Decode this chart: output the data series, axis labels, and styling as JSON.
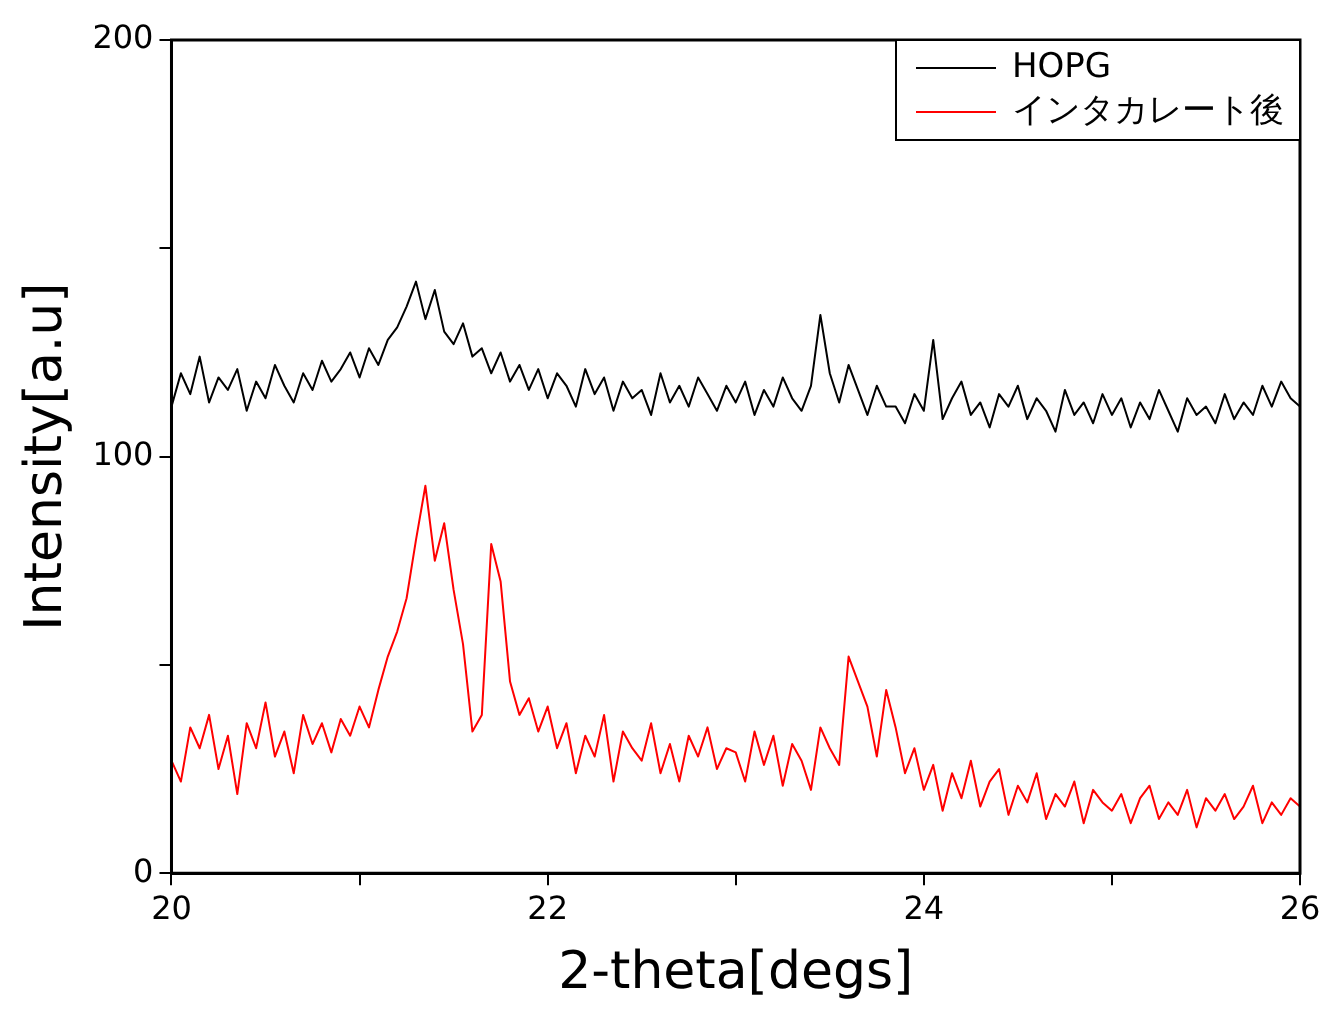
{
  "chart_data": {
    "type": "line",
    "xlabel": "2-theta[degs]",
    "ylabel": "Intensity[a.u]",
    "x": [
      20,
      20.05,
      20.1,
      20.15,
      20.2,
      20.25,
      20.3,
      20.35,
      20.4,
      20.45,
      20.5,
      20.55,
      20.6,
      20.65,
      20.7,
      20.75,
      20.8,
      20.85,
      20.9,
      20.95,
      21,
      21.05,
      21.1,
      21.15,
      21.2,
      21.25,
      21.3,
      21.35,
      21.4,
      21.45,
      21.5,
      21.55,
      21.6,
      21.65,
      21.7,
      21.75,
      21.8,
      21.85,
      21.9,
      21.95,
      22,
      22.05,
      22.1,
      22.15,
      22.2,
      22.25,
      22.3,
      22.35,
      22.4,
      22.45,
      22.5,
      22.55,
      22.6,
      22.65,
      22.7,
      22.75,
      22.8,
      22.85,
      22.9,
      22.95,
      23,
      23.05,
      23.1,
      23.15,
      23.2,
      23.25,
      23.3,
      23.35,
      23.4,
      23.45,
      23.5,
      23.55,
      23.6,
      23.65,
      23.7,
      23.75,
      23.8,
      23.85,
      23.9,
      23.95,
      24,
      24.05,
      24.1,
      24.15,
      24.2,
      24.25,
      24.3,
      24.35,
      24.4,
      24.45,
      24.5,
      24.55,
      24.6,
      24.65,
      24.7,
      24.75,
      24.8,
      24.85,
      24.9,
      24.95,
      25,
      25.05,
      25.1,
      25.15,
      25.2,
      25.25,
      25.3,
      25.35,
      25.4,
      25.45,
      25.5,
      25.55,
      25.6,
      25.65,
      25.7,
      25.75,
      25.8,
      25.85,
      25.9,
      25.95,
      26
    ],
    "series": [
      {
        "name": "HOPG",
        "color": "#000000",
        "values": [
          112,
          120,
          115,
          124,
          113,
          119,
          116,
          121,
          111,
          118,
          114,
          122,
          117,
          113,
          120,
          116,
          123,
          118,
          121,
          125,
          119,
          126,
          122,
          128,
          131,
          136,
          142,
          133,
          140,
          130,
          127,
          132,
          124,
          126,
          120,
          125,
          118,
          122,
          116,
          121,
          114,
          120,
          117,
          112,
          121,
          115,
          119,
          111,
          118,
          114,
          116,
          110,
          120,
          113,
          117,
          112,
          119,
          115,
          111,
          117,
          113,
          118,
          110,
          116,
          112,
          119,
          114,
          111,
          117,
          134,
          120,
          113,
          122,
          116,
          110,
          117,
          112,
          112,
          108,
          115,
          111,
          128,
          109,
          114,
          118,
          110,
          113,
          107,
          115,
          112,
          117,
          109,
          114,
          111,
          106,
          116,
          110,
          113,
          108,
          115,
          110,
          114,
          107,
          113,
          109,
          116,
          111,
          106,
          114,
          110,
          112,
          108,
          115,
          109,
          113,
          110,
          117,
          112,
          118,
          114,
          112
        ]
      },
      {
        "name": "インタカレート後",
        "color": "#ff0000",
        "values": [
          27,
          22,
          35,
          30,
          38,
          25,
          33,
          19,
          36,
          30,
          41,
          28,
          34,
          24,
          38,
          31,
          36,
          29,
          37,
          33,
          40,
          35,
          44,
          52,
          58,
          66,
          80,
          93,
          75,
          84,
          68,
          55,
          34,
          38,
          79,
          70,
          46,
          38,
          42,
          34,
          40,
          30,
          36,
          24,
          33,
          28,
          38,
          22,
          34,
          30,
          27,
          36,
          24,
          31,
          22,
          33,
          28,
          35,
          25,
          30,
          29,
          22,
          34,
          26,
          33,
          21,
          31,
          27,
          20,
          35,
          30,
          26,
          52,
          46,
          40,
          28,
          44,
          35,
          24,
          30,
          20,
          26,
          15,
          24,
          18,
          27,
          16,
          22,
          25,
          14,
          21,
          17,
          24,
          13,
          19,
          16,
          22,
          12,
          20,
          17,
          15,
          19,
          12,
          18,
          21,
          13,
          17,
          14,
          20,
          11,
          18,
          15,
          19,
          13,
          16,
          21,
          12,
          17,
          14,
          18,
          16
        ]
      }
    ],
    "xlim": [
      20,
      26
    ],
    "xticks": [
      20,
      {
        "value": 21,
        "label": null
      },
      22,
      {
        "value": 23,
        "label": null
      },
      24,
      {
        "value": 25,
        "label": null
      },
      26
    ],
    "ylim": [
      0,
      200
    ],
    "yticks": [
      0,
      {
        "value": 50,
        "label": null
      },
      100,
      {
        "value": 150,
        "label": null
      },
      200
    ],
    "grid": false,
    "legend": "top right",
    "marker": "none",
    "line_style": "solid"
  }
}
